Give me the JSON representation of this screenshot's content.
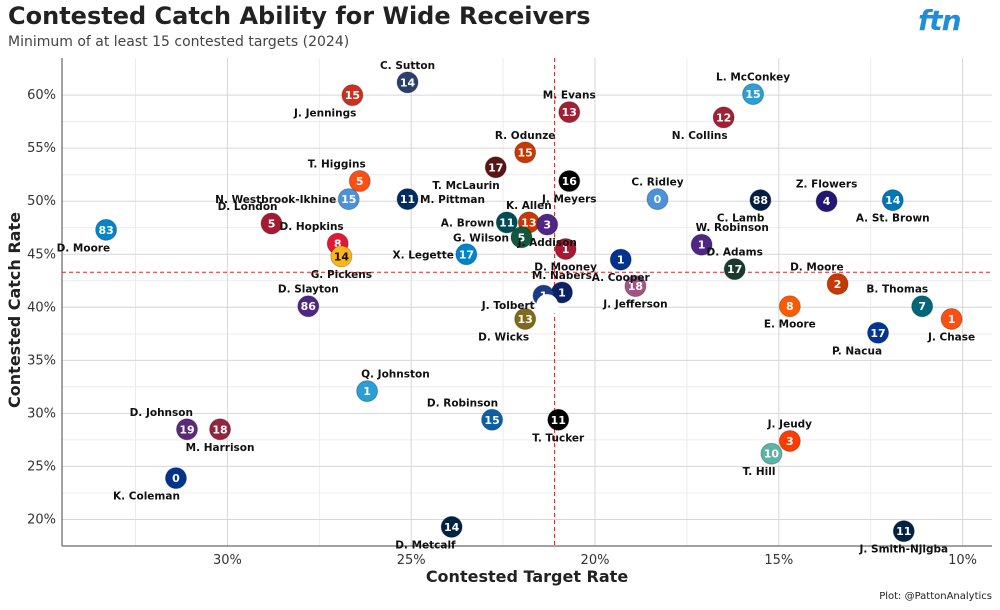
{
  "header": {
    "title": "Contested Catch Ability for Wide Receivers",
    "subtitle": "Minimum of at least 15 contested targets (2024)",
    "logo": "ftn",
    "caption": "Plot: @PattonAnalytics"
  },
  "chart_data": {
    "type": "scatter",
    "title": "Contested Catch Ability for Wide Receivers",
    "subtitle": "Minimum of at least 15 contested targets (2024)",
    "xlabel": "Contested Target Rate",
    "ylabel": "Contested Catch Rate",
    "x_reversed": true,
    "xlim": [
      0.345,
      0.092
    ],
    "ylim": [
      0.175,
      0.635
    ],
    "x_ticks": [
      0.3,
      0.25,
      0.2,
      0.15,
      0.1
    ],
    "x_tick_labels": [
      "30%",
      "25%",
      "20%",
      "15%",
      "10%"
    ],
    "y_ticks": [
      0.2,
      0.25,
      0.3,
      0.35,
      0.4,
      0.45,
      0.5,
      0.55,
      0.6
    ],
    "y_tick_labels": [
      "20%",
      "25%",
      "30%",
      "35%",
      "40%",
      "45%",
      "50%",
      "55%",
      "60%"
    ],
    "ref_lines": {
      "x": 0.211,
      "y": 0.433
    },
    "grid": true,
    "legend": "none",
    "points": [
      {
        "name": "C. Sutton",
        "number": "14",
        "x": 0.251,
        "y": 0.612,
        "color": "#2a3f6b",
        "label_pos": "top"
      },
      {
        "name": "J. Jennings",
        "number": "15",
        "x": 0.266,
        "y": 0.6,
        "color": "#c8321e",
        "label_pos": "bottom-left"
      },
      {
        "name": "M. Evans",
        "number": "13",
        "x": 0.207,
        "y": 0.584,
        "color": "#a31f34",
        "label_pos": "top"
      },
      {
        "name": "L. McConkey",
        "number": "15",
        "x": 0.157,
        "y": 0.601,
        "color": "#2a9fd6",
        "label_pos": "top"
      },
      {
        "name": "N. Collins",
        "number": "12",
        "x": 0.165,
        "y": 0.579,
        "color": "#a31f34",
        "label_pos": "bottom-left"
      },
      {
        "name": "R. Odunze",
        "number": "15",
        "x": 0.219,
        "y": 0.546,
        "color": "#c83803",
        "label_pos": "top"
      },
      {
        "name": "T. McLaurin",
        "number": "17",
        "x": 0.227,
        "y": 0.532,
        "color": "#5a1414",
        "label_pos": "bottom-left"
      },
      {
        "name": "T. Higgins",
        "number": "5",
        "x": 0.264,
        "y": 0.519,
        "color": "#fb4f14",
        "label_pos": "top-left"
      },
      {
        "name": "J. Meyers",
        "number": "16",
        "x": 0.207,
        "y": 0.519,
        "color": "#000000",
        "label_pos": "bottom"
      },
      {
        "name": "N. Westbrook-Ikhine",
        "number": "15",
        "x": 0.267,
        "y": 0.502,
        "color": "#4b92db",
        "label_pos": "left"
      },
      {
        "name": "M. Pittman",
        "number": "11",
        "x": 0.251,
        "y": 0.502,
        "color": "#002c5f",
        "label_pos": "right"
      },
      {
        "name": "C. Ridley",
        "number": "0",
        "x": 0.183,
        "y": 0.502,
        "color": "#4b92db",
        "label_pos": "top"
      },
      {
        "name": "C. Lamb",
        "number": "88",
        "x": 0.155,
        "y": 0.501,
        "color": "#041e42",
        "label_pos": "bottom-left"
      },
      {
        "name": "Z. Flowers",
        "number": "4",
        "x": 0.137,
        "y": 0.5,
        "color": "#241773",
        "label_pos": "top"
      },
      {
        "name": "A. St. Brown",
        "number": "14",
        "x": 0.119,
        "y": 0.501,
        "color": "#0076b6",
        "label_pos": "bottom"
      },
      {
        "name": "D. Moore",
        "number": "83",
        "x": 0.333,
        "y": 0.473,
        "color": "#0085ca",
        "label_pos": "bottom-left"
      },
      {
        "name": "D. London",
        "number": "5",
        "x": 0.288,
        "y": 0.479,
        "color": "#a71930",
        "label_pos": "top-left"
      },
      {
        "name": "A. Brown",
        "number": "11",
        "x": 0.224,
        "y": 0.48,
        "color": "#004c54",
        "label_pos": "left"
      },
      {
        "name": "K. Allen",
        "number": "13",
        "x": 0.218,
        "y": 0.48,
        "color": "#c83803",
        "label_pos": "top"
      },
      {
        "name": "J. Addison",
        "number": "3",
        "x": 0.213,
        "y": 0.478,
        "color": "#4f2683",
        "label_pos": "bottom"
      },
      {
        "name": "G. Wilson",
        "number": "5",
        "x": 0.22,
        "y": 0.466,
        "color": "#125740",
        "label_pos": "left"
      },
      {
        "name": "D. Hopkins",
        "number": "8",
        "x": 0.27,
        "y": 0.46,
        "color": "#e31837",
        "label_pos": "top-left"
      },
      {
        "name": "G. Pickens",
        "number": "14",
        "x": 0.269,
        "y": 0.448,
        "color": "#ffb612",
        "label_pos": "bottom"
      },
      {
        "name": "X. Legette",
        "number": "17",
        "x": 0.235,
        "y": 0.45,
        "color": "#0085ca",
        "label_pos": "left"
      },
      {
        "name": "D. Mooney",
        "number": "1",
        "x": 0.208,
        "y": 0.455,
        "color": "#a71930",
        "label_pos": "bottom"
      },
      {
        "name": "A. Cooper",
        "number": "1",
        "x": 0.193,
        "y": 0.445,
        "color": "#00338d",
        "label_pos": "bottom"
      },
      {
        "name": "W. Robinson",
        "number": "1",
        "x": 0.171,
        "y": 0.459,
        "color": "#4f2683",
        "label_pos": "top-right"
      },
      {
        "name": "D. Adams",
        "number": "17",
        "x": 0.162,
        "y": 0.436,
        "color": "#1a3a2f",
        "label_pos": "top"
      },
      {
        "name": "D. Moore",
        "number": "2",
        "x": 0.134,
        "y": 0.422,
        "color": "#c83803",
        "label_pos": "top-left"
      },
      {
        "name": "M. Nabers",
        "number": "1",
        "x": 0.209,
        "y": 0.414,
        "color": "#0b2265",
        "label_pos": "top"
      },
      {
        "name": "J. Jefferson",
        "number": "18",
        "x": 0.189,
        "y": 0.42,
        "color": "#a05585",
        "label_pos": "bottom"
      },
      {
        "name": "K. Allen",
        "number": "1",
        "x": 0.214,
        "y": 0.411,
        "color": "#1d3a8a",
        "label_pos": "none"
      },
      {
        "name": "D. Slayton",
        "number": "86",
        "x": 0.278,
        "y": 0.401,
        "color": "#4f2683",
        "label_pos": "top"
      },
      {
        "name": "J. Tolbert",
        "number": "",
        "x": 0.213,
        "y": 0.402,
        "color": "#ffffff",
        "label_pos": "left"
      },
      {
        "name": "B. Thomas",
        "number": "7",
        "x": 0.111,
        "y": 0.401,
        "color": "#006778",
        "label_pos": "top-left"
      },
      {
        "name": "E. Moore",
        "number": "8",
        "x": 0.147,
        "y": 0.401,
        "color": "#ff5a00",
        "label_pos": "bottom"
      },
      {
        "name": "J. Chase",
        "number": "1",
        "x": 0.103,
        "y": 0.389,
        "color": "#fb4f14",
        "label_pos": "bottom"
      },
      {
        "name": "D. Wicks",
        "number": "13",
        "x": 0.219,
        "y": 0.389,
        "color": "#7f6a1a",
        "label_pos": "bottom-left"
      },
      {
        "name": "P. Nacua",
        "number": "17",
        "x": 0.123,
        "y": 0.376,
        "color": "#003594",
        "label_pos": "bottom-left"
      },
      {
        "name": "Q. Johnston",
        "number": "1",
        "x": 0.262,
        "y": 0.321,
        "color": "#2a9fd6",
        "label_pos": "top-right"
      },
      {
        "name": "D. Robinson",
        "number": "15",
        "x": 0.228,
        "y": 0.294,
        "color": "#0b5fa5",
        "label_pos": "top-left"
      },
      {
        "name": "T. Tucker",
        "number": "11",
        "x": 0.21,
        "y": 0.294,
        "color": "#000000",
        "label_pos": "bottom"
      },
      {
        "name": "D. Johnson",
        "number": "19",
        "x": 0.311,
        "y": 0.285,
        "color": "#5a2a7a",
        "label_pos": "top-left"
      },
      {
        "name": "M. Harrison",
        "number": "18",
        "x": 0.302,
        "y": 0.285,
        "color": "#97233f",
        "label_pos": "bottom"
      },
      {
        "name": "J. Jeudy",
        "number": "3",
        "x": 0.147,
        "y": 0.274,
        "color": "#ff3c00",
        "label_pos": "top"
      },
      {
        "name": "T. Hill",
        "number": "10",
        "x": 0.152,
        "y": 0.262,
        "color": "#5bb4a8",
        "label_pos": "bottom-left"
      },
      {
        "name": "K. Coleman",
        "number": "0",
        "x": 0.314,
        "y": 0.239,
        "color": "#00338d",
        "label_pos": "bottom-left"
      },
      {
        "name": "D. Metcalf",
        "number": "14",
        "x": 0.239,
        "y": 0.193,
        "color": "#002244",
        "label_pos": "bottom-left"
      },
      {
        "name": "J. Smith-Njigba",
        "number": "11",
        "x": 0.116,
        "y": 0.189,
        "color": "#002244",
        "label_pos": "bottom"
      }
    ]
  }
}
